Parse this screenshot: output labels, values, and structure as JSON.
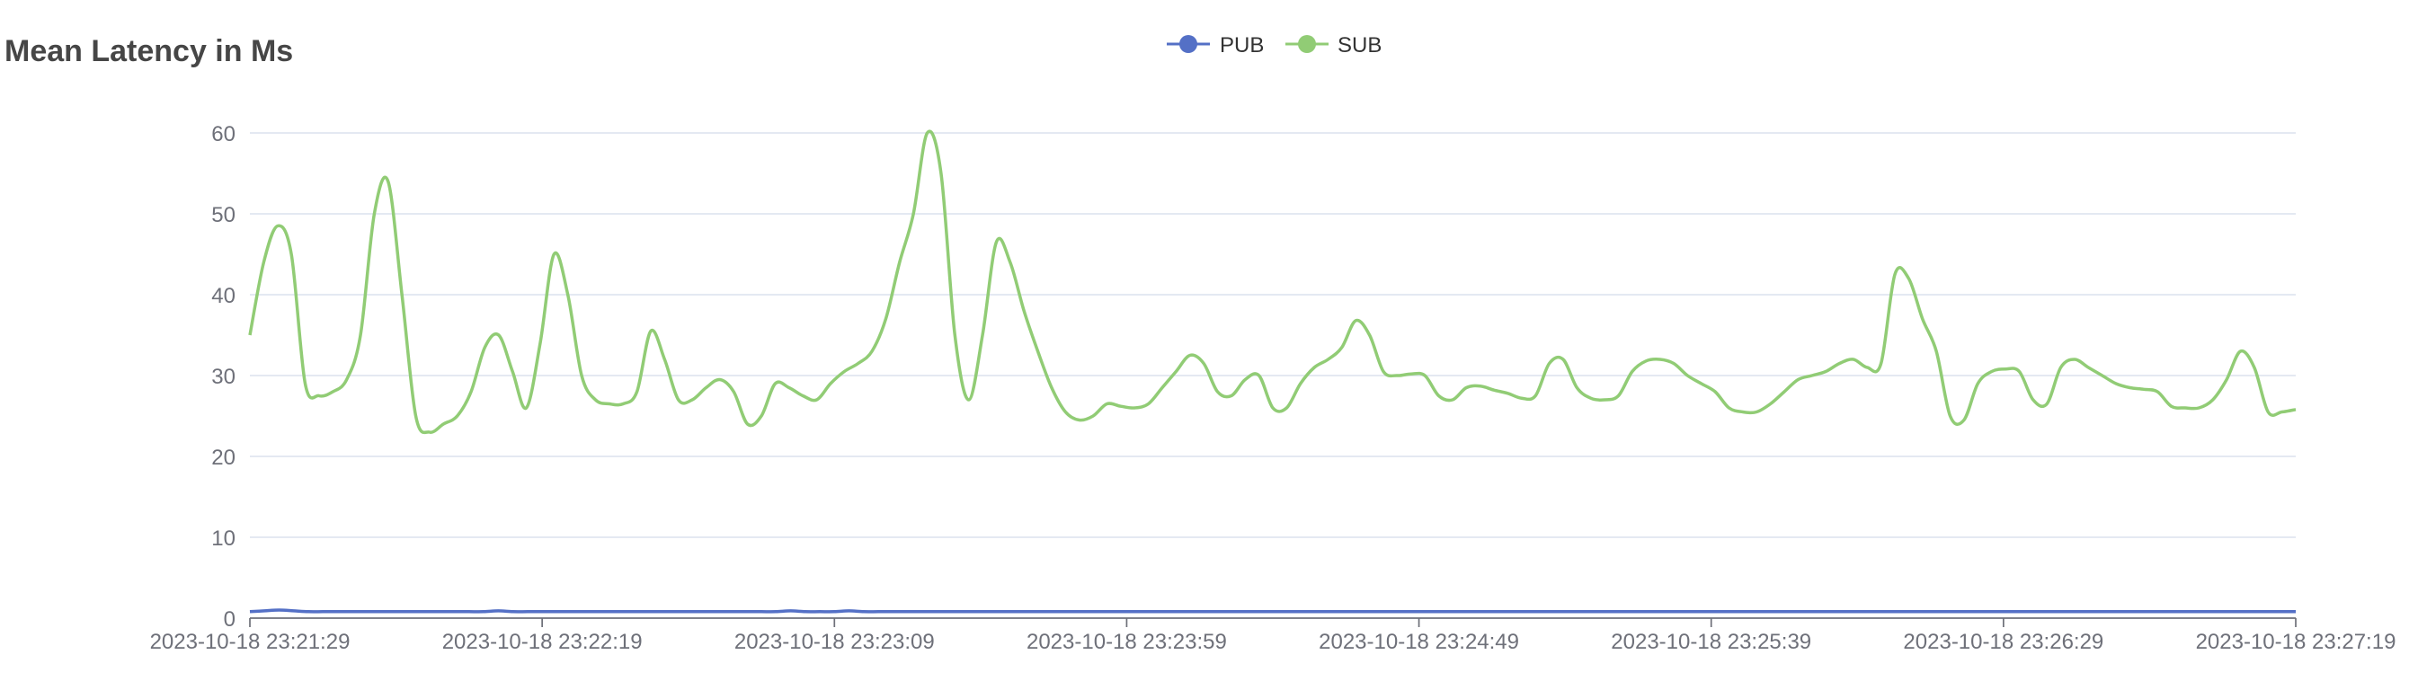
{
  "chart_data": {
    "type": "line",
    "title": "Mean Latency in Ms",
    "xlabel": "",
    "ylabel": "",
    "ylim": [
      0,
      60
    ],
    "yticks": [
      0,
      10,
      20,
      30,
      40,
      50,
      60
    ],
    "x_tick_labels": [
      "2023-10-18 23:21:29",
      "2023-10-18 23:22:19",
      "2023-10-18 23:23:09",
      "2023-10-18 23:23:59",
      "2023-10-18 23:24:49",
      "2023-10-18 23:25:39",
      "2023-10-18 23:26:29",
      "2023-10-18 23:27:19"
    ],
    "x_start": "2023-10-18 23:21:29",
    "x_end": "2023-10-18 23:27:19",
    "grid": true,
    "legend_position": "top-center",
    "series": [
      {
        "name": "PUB",
        "color": "#5470c6",
        "values": [
          0.8,
          0.9,
          1.0,
          0.9,
          0.8,
          0.8,
          0.8,
          0.8,
          0.8,
          0.8,
          0.8,
          0.8,
          0.8,
          0.8,
          0.8,
          0.8,
          0.8,
          0.9,
          0.8,
          0.8,
          0.8,
          0.8,
          0.8,
          0.8,
          0.8,
          0.8,
          0.8,
          0.8,
          0.8,
          0.8,
          0.8,
          0.8,
          0.8,
          0.8,
          0.8,
          0.8,
          0.8,
          0.9,
          0.8,
          0.8,
          0.8,
          0.9,
          0.8,
          0.8,
          0.8,
          0.8,
          0.8,
          0.8,
          0.8,
          0.8,
          0.8,
          0.8,
          0.8,
          0.8,
          0.8,
          0.8,
          0.8,
          0.8,
          0.8,
          0.8,
          0.8,
          0.8,
          0.8,
          0.8,
          0.8,
          0.8,
          0.8,
          0.8,
          0.8,
          0.8,
          0.8,
          0.8,
          0.8,
          0.8,
          0.8,
          0.8,
          0.8,
          0.8,
          0.8,
          0.8,
          0.8,
          0.8,
          0.8,
          0.8,
          0.8,
          0.8,
          0.8,
          0.8,
          0.8,
          0.8,
          0.8,
          0.8,
          0.8,
          0.8,
          0.8,
          0.8,
          0.8,
          0.8,
          0.8,
          0.8,
          0.8,
          0.8,
          0.8,
          0.8,
          0.8,
          0.8,
          0.8,
          0.8,
          0.8,
          0.8,
          0.8,
          0.8,
          0.8,
          0.8,
          0.8,
          0.8,
          0.8,
          0.8,
          0.8,
          0.8,
          0.8,
          0.8,
          0.8,
          0.8,
          0.8,
          0.8,
          0.8,
          0.8,
          0.8,
          0.8,
          0.8,
          0.8,
          0.8,
          0.8,
          0.8,
          0.8,
          0.8,
          0.8,
          0.8,
          0.8,
          0.8
        ]
      },
      {
        "name": "SUB",
        "color": "#91cc75",
        "values": [
          35,
          44,
          48.5,
          45,
          29,
          27.5,
          28,
          29.5,
          35,
          50,
          54,
          40,
          25,
          23,
          24,
          25,
          28,
          33.5,
          35,
          30.5,
          26,
          34,
          45,
          40,
          30,
          27,
          26.5,
          26.5,
          28,
          35.5,
          32,
          27,
          27,
          28.5,
          29.5,
          28,
          24,
          25,
          29,
          28.5,
          27.5,
          27,
          29,
          30.5,
          31.5,
          33,
          37,
          44,
          50,
          60,
          55,
          35,
          27,
          35,
          46.5,
          44,
          38,
          33,
          28.5,
          25.5,
          24.5,
          25,
          26.5,
          26.2,
          26,
          26.5,
          28.5,
          30.5,
          32.5,
          31.5,
          28,
          27.5,
          29.5,
          30,
          26,
          26,
          29,
          31,
          32,
          33.5,
          36.8,
          35,
          30.5,
          30,
          30.2,
          30,
          27.5,
          27,
          28.5,
          28.7,
          28.2,
          27.8,
          27.2,
          27.5,
          31.5,
          32,
          28.5,
          27.2,
          27,
          27.5,
          30.5,
          31.8,
          32,
          31.5,
          30,
          29,
          28,
          26,
          25.5,
          25.5,
          26.5,
          28,
          29.5,
          30,
          30.5,
          31.5,
          32,
          31,
          31.5,
          42.5,
          42,
          37,
          33,
          25,
          24.5,
          29,
          30.5,
          30.8,
          30.5,
          27,
          26.5,
          31,
          32,
          31,
          30,
          29,
          28.5,
          28.3,
          28,
          26.2,
          26,
          26,
          27,
          29.5,
          33,
          31,
          25.5,
          25.5,
          25.8
        ]
      }
    ]
  }
}
